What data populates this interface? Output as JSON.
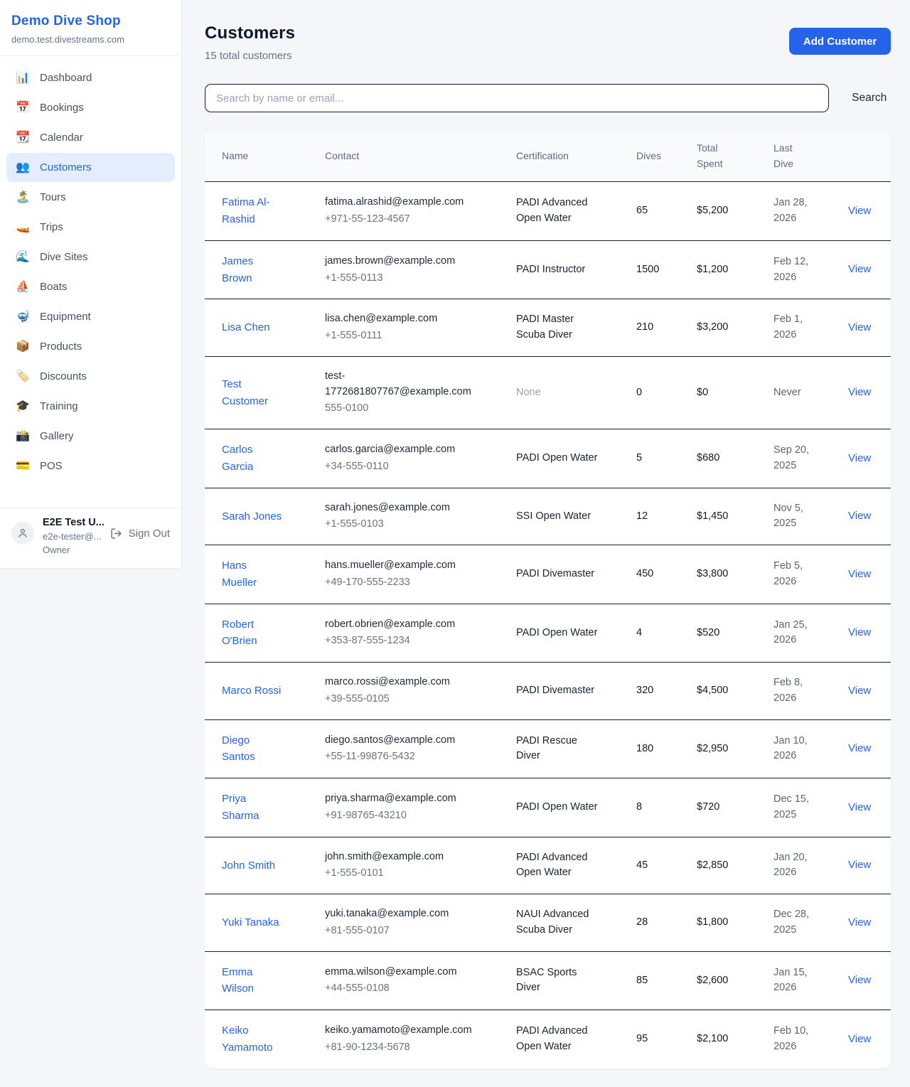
{
  "colors": {
    "accent": "#2563eb",
    "active_nav_bg": "#e4edfb",
    "page_bg": "#f4f6f9",
    "table_border_dark": "#19202e",
    "muted_text": "#64748b"
  },
  "sidebar": {
    "shop_name": "Demo Dive Shop",
    "shop_domain": "demo.test.divestreams.com",
    "nav": [
      {
        "icon_name": "bar-chart-icon",
        "icon": "📊",
        "label": "Dashboard",
        "active": false
      },
      {
        "icon_name": "calendar-date-icon",
        "icon": "📅",
        "label": "Bookings",
        "active": false
      },
      {
        "icon_name": "tear-off-calendar-icon",
        "icon": "📆",
        "label": "Calendar",
        "active": false
      },
      {
        "icon_name": "people-icon",
        "icon": "👥",
        "label": "Customers",
        "active": true
      },
      {
        "icon_name": "island-icon",
        "icon": "🏝️",
        "label": "Tours",
        "active": false
      },
      {
        "icon_name": "speedboat-icon",
        "icon": "🚤",
        "label": "Trips",
        "active": false
      },
      {
        "icon_name": "wave-icon",
        "icon": "🌊",
        "label": "Dive Sites",
        "active": false
      },
      {
        "icon_name": "sailboat-icon",
        "icon": "⛵",
        "label": "Boats",
        "active": false
      },
      {
        "icon_name": "diving-mask-icon",
        "icon": "🤿",
        "label": "Equipment",
        "active": false
      },
      {
        "icon_name": "package-icon",
        "icon": "📦",
        "label": "Products",
        "active": false
      },
      {
        "icon_name": "label-icon",
        "icon": "🏷️",
        "label": "Discounts",
        "active": false
      },
      {
        "icon_name": "graduation-cap-icon",
        "icon": "🎓",
        "label": "Training",
        "active": false
      },
      {
        "icon_name": "camera-flash-icon",
        "icon": "📸",
        "label": "Gallery",
        "active": false
      },
      {
        "icon_name": "credit-card-icon",
        "icon": "💳",
        "label": "POS",
        "active": false
      }
    ],
    "user": {
      "name": "E2E Test U...",
      "email": "e2e-tester@...",
      "role": "Owner",
      "sign_out_label": "Sign Out"
    }
  },
  "header": {
    "title": "Customers",
    "subtitle": "15 total customers",
    "add_button_label": "Add Customer"
  },
  "search": {
    "placeholder": "Search by name or email...",
    "button_label": "Search"
  },
  "table": {
    "columns": [
      "Name",
      "Contact",
      "Certification",
      "Dives",
      "Total Spent",
      "Last Dive"
    ],
    "view_label": "View",
    "rows": [
      {
        "name": "Fatima Al-Rashid",
        "email": "fatima.alrashid@example.com",
        "phone": "+971-55-123-4567",
        "certification": "PADI Advanced Open Water",
        "dives": "65",
        "total_spent": "$5,200",
        "last_dive": "Jan 28, 2026"
      },
      {
        "name": "James Brown",
        "email": "james.brown@example.com",
        "phone": "+1-555-0113",
        "certification": "PADI Instructor",
        "dives": "1500",
        "total_spent": "$1,200",
        "last_dive": "Feb 12, 2026"
      },
      {
        "name": "Lisa Chen",
        "email": "lisa.chen@example.com",
        "phone": "+1-555-0111",
        "certification": "PADI Master Scuba Diver",
        "dives": "210",
        "total_spent": "$3,200",
        "last_dive": "Feb 1, 2026"
      },
      {
        "name": "Test Customer",
        "email": "test-1772681807767@example.com",
        "phone": "555-0100",
        "certification": "None",
        "dives": "0",
        "total_spent": "$0",
        "last_dive": "Never"
      },
      {
        "name": "Carlos Garcia",
        "email": "carlos.garcia@example.com",
        "phone": "+34-555-0110",
        "certification": "PADI Open Water",
        "dives": "5",
        "total_spent": "$680",
        "last_dive": "Sep 20, 2025"
      },
      {
        "name": "Sarah Jones",
        "email": "sarah.jones@example.com",
        "phone": "+1-555-0103",
        "certification": "SSI Open Water",
        "dives": "12",
        "total_spent": "$1,450",
        "last_dive": "Nov 5, 2025"
      },
      {
        "name": "Hans Mueller",
        "email": "hans.mueller@example.com",
        "phone": "+49-170-555-2233",
        "certification": "PADI Divemaster",
        "dives": "450",
        "total_spent": "$3,800",
        "last_dive": "Feb 5, 2026"
      },
      {
        "name": "Robert O'Brien",
        "email": "robert.obrien@example.com",
        "phone": "+353-87-555-1234",
        "certification": "PADI Open Water",
        "dives": "4",
        "total_spent": "$520",
        "last_dive": "Jan 25, 2026"
      },
      {
        "name": "Marco Rossi",
        "email": "marco.rossi@example.com",
        "phone": "+39-555-0105",
        "certification": "PADI Divemaster",
        "dives": "320",
        "total_spent": "$4,500",
        "last_dive": "Feb 8, 2026"
      },
      {
        "name": "Diego Santos",
        "email": "diego.santos@example.com",
        "phone": "+55-11-99876-5432",
        "certification": "PADI Rescue Diver",
        "dives": "180",
        "total_spent": "$2,950",
        "last_dive": "Jan 10, 2026"
      },
      {
        "name": "Priya Sharma",
        "email": "priya.sharma@example.com",
        "phone": "+91-98765-43210",
        "certification": "PADI Open Water",
        "dives": "8",
        "total_spent": "$720",
        "last_dive": "Dec 15, 2025"
      },
      {
        "name": "John Smith",
        "email": "john.smith@example.com",
        "phone": "+1-555-0101",
        "certification": "PADI Advanced Open Water",
        "dives": "45",
        "total_spent": "$2,850",
        "last_dive": "Jan 20, 2026"
      },
      {
        "name": "Yuki Tanaka",
        "email": "yuki.tanaka@example.com",
        "phone": "+81-555-0107",
        "certification": "NAUI Advanced Scuba Diver",
        "dives": "28",
        "total_spent": "$1,800",
        "last_dive": "Dec 28, 2025"
      },
      {
        "name": "Emma Wilson",
        "email": "emma.wilson@example.com",
        "phone": "+44-555-0108",
        "certification": "BSAC Sports Diver",
        "dives": "85",
        "total_spent": "$2,600",
        "last_dive": "Jan 15, 2026"
      },
      {
        "name": "Keiko Yamamoto",
        "email": "keiko.yamamoto@example.com",
        "phone": "+81-90-1234-5678",
        "certification": "PADI Advanced Open Water",
        "dives": "95",
        "total_spent": "$2,100",
        "last_dive": "Feb 10, 2026"
      }
    ]
  }
}
